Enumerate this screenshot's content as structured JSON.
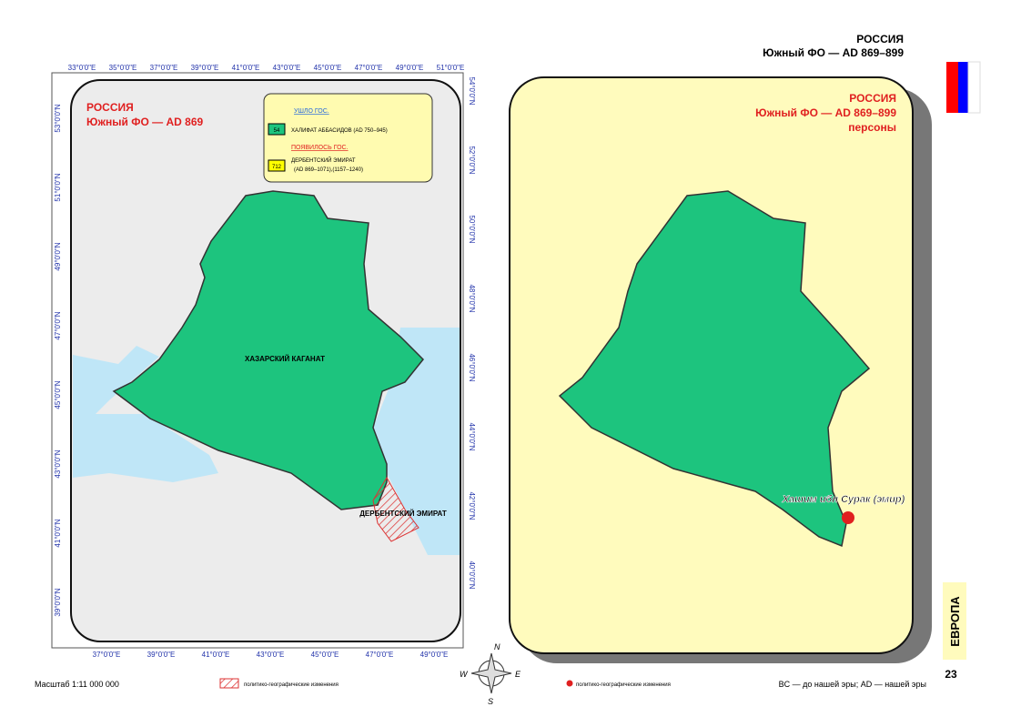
{
  "header": {
    "country": "РОССИЯ",
    "subtitle": "Южный ФО — AD 869–899"
  },
  "left_map": {
    "title": "РОССИЯ",
    "subtitle": "Южный ФО — AD 869",
    "legend": {
      "gone_heading": "УШЛО ГОС.",
      "gone_badge": "54",
      "gone_name": "ХАЛИФАТ АББАСИДОВ (AD 750–945)",
      "new_heading": "ПОЯВИЛОСЬ ГОС.",
      "new_badge": "712",
      "new_name": "ДЕРБЕНТСКИЙ ЭМИРАТ",
      "new_dates": "(AD 869–1071),(1157–1240)"
    },
    "labels": [
      "ХАЗАРСКИЙ КАГАНАТ",
      "ДЕРБЕНТСКИЙ ЭМИРАТ"
    ],
    "top_axis": [
      "33°0'0\"E",
      "35°0'0\"E",
      "37°0'0\"E",
      "39°0'0\"E",
      "41°0'0\"E",
      "43°0'0\"E",
      "45°0'0\"E",
      "47°0'0\"E",
      "49°0'0\"E",
      "51°0'0\"E"
    ],
    "bottom_axis": [
      "37°0'0\"E",
      "39°0'0\"E",
      "41°0'0\"E",
      "43°0'0\"E",
      "45°0'0\"E",
      "47°0'0\"E",
      "49°0'0\"E"
    ],
    "left_axis": [
      "53°0'0\"N",
      "51°0'0\"N",
      "49°0'0\"N",
      "47°0'0\"N",
      "45°0'0\"N",
      "43°0'0\"N",
      "41°0'0\"N",
      "39°0'0\"N"
    ],
    "right_axis": [
      "54°0'0\"N",
      "52°0'0\"N",
      "50°0'0\"N",
      "48°0'0\"N",
      "46°0'0\"N",
      "44°0'0\"N",
      "42°0'0\"N",
      "40°0'0\"N"
    ]
  },
  "right_map": {
    "title": "РОССИЯ",
    "subtitle": "Южный ФО — AD 869–899",
    "subject": "персоны",
    "person": "Хашим ибн Сурак (эмир)"
  },
  "compass": [
    "N",
    "W",
    "E",
    "S"
  ],
  "footer": {
    "scale": "Масштаб 1:11 000 000",
    "legend_left": "политико-географические изменения",
    "legend_right": "политико-географические изменения",
    "era_note": "BC — до нашей эры; AD — нашей эры"
  },
  "tab": {
    "region": "ЕВРОПА",
    "page": "23"
  }
}
